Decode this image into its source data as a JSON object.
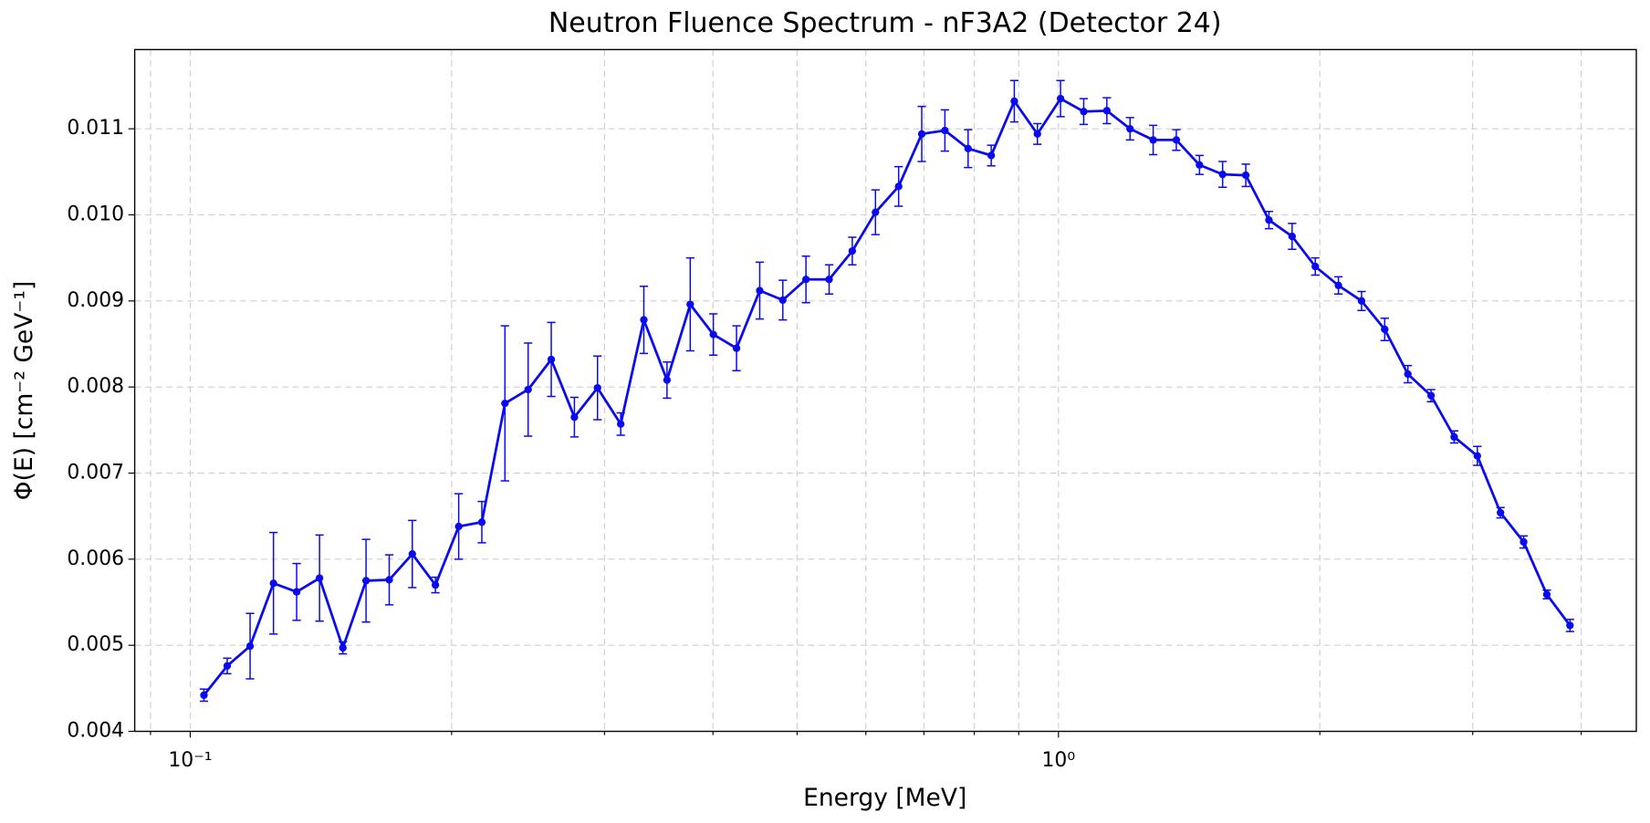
{
  "chart_data": {
    "type": "line",
    "title": "Neutron Fluence Spectrum - nF3A2 (Detector 24)",
    "xlabel": "Energy [MeV]",
    "ylabel": "Φ(E) [cm⁻² GeV⁻¹]",
    "xscale": "log",
    "grid": true,
    "color": "#0a0af0",
    "xlim": [
      0.0863,
      4.63
    ],
    "ylim": [
      0.004,
      0.01192
    ],
    "xticks": [
      {
        "value": 0.1,
        "label": "10⁻¹"
      },
      {
        "value": 1,
        "label": "10⁰"
      }
    ],
    "xminor_ticks": [
      0.09,
      0.2,
      0.3,
      0.4,
      0.5,
      0.6,
      0.7,
      0.8,
      0.9,
      2,
      3,
      4
    ],
    "yticks": [
      0.004,
      0.005,
      0.006,
      0.007,
      0.008,
      0.009,
      {
        "value": 0.01,
        "label": "0.010"
      },
      0.011
    ],
    "x": [
      0.1037,
      0.1103,
      0.1172,
      0.1247,
      0.1326,
      0.1409,
      0.1499,
      0.1594,
      0.1695,
      0.1802,
      0.1916,
      0.2038,
      0.2167,
      0.2304,
      0.245,
      0.2605,
      0.277,
      0.2945,
      0.3132,
      0.333,
      0.3541,
      0.3766,
      0.4004,
      0.4258,
      0.4528,
      0.4814,
      0.5119,
      0.5443,
      0.5788,
      0.6155,
      0.6545,
      0.6959,
      0.74,
      0.7869,
      0.8367,
      0.8895,
      0.9457,
      1.0056,
      1.0693,
      1.137,
      1.209,
      1.2856,
      1.367,
      1.4536,
      1.5456,
      1.6435,
      1.7476,
      1.8583,
      1.976,
      2.1012,
      2.2342,
      2.3757,
      2.5262,
      2.6862,
      2.8563,
      3.0372,
      3.2296,
      3.4341,
      3.6516,
      3.8829
    ],
    "values": [
      0.00442,
      0.00476,
      0.00499,
      0.00572,
      0.00562,
      0.00578,
      0.00497,
      0.00575,
      0.00576,
      0.00606,
      0.0057,
      0.00638,
      0.00643,
      0.00781,
      0.00797,
      0.00832,
      0.00765,
      0.00799,
      0.00757,
      0.00878,
      0.00808,
      0.00896,
      0.00861,
      0.00845,
      0.00912,
      0.00901,
      0.00925,
      0.00925,
      0.00958,
      0.01003,
      0.01033,
      0.01094,
      0.01098,
      0.01077,
      0.01069,
      0.01132,
      0.01094,
      0.01135,
      0.0112,
      0.01121,
      0.011,
      0.01087,
      0.01087,
      0.01058,
      0.01047,
      0.01046,
      0.00994,
      0.00975,
      0.0094,
      0.00918,
      0.009,
      0.00867,
      0.00815,
      0.0079,
      0.00742,
      0.0072,
      0.00654,
      0.0062,
      0.00559,
      0.00523
    ],
    "errors": [
      7e-05,
      9e-05,
      0.00038,
      0.00059,
      0.00033,
      0.0005,
      7e-05,
      0.00048,
      0.00029,
      0.00039,
      9e-05,
      0.00038,
      0.00024,
      0.0009,
      0.00054,
      0.00043,
      0.00023,
      0.00037,
      0.00013,
      0.00039,
      0.00021,
      0.00054,
      0.00024,
      0.00026,
      0.00033,
      0.00023,
      0.00027,
      0.00017,
      0.00016,
      0.00026,
      0.00023,
      0.00032,
      0.00024,
      0.00022,
      0.00012,
      0.00024,
      0.00012,
      0.00021,
      0.00015,
      0.00015,
      0.00013,
      0.00017,
      0.00012,
      0.00011,
      0.00015,
      0.00013,
      0.0001,
      0.00015,
      0.0001,
      0.0001,
      0.00011,
      0.00013,
      0.0001,
      7e-05,
      7e-05,
      0.00011,
      6e-05,
      7e-05,
      5e-05,
      7e-05
    ]
  }
}
